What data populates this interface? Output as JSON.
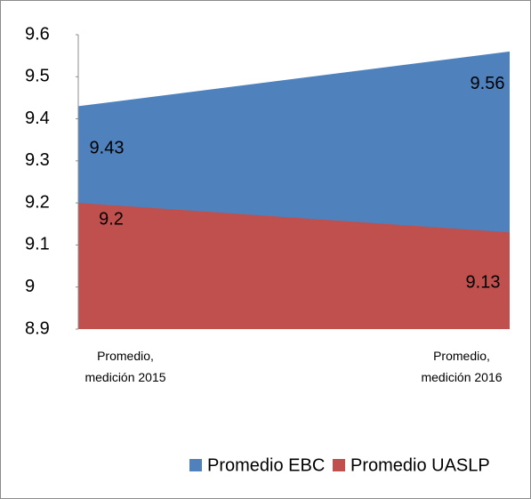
{
  "chart_data": {
    "type": "area",
    "categories": [
      "Promedio, medición 2015",
      "Promedio, medición 2016"
    ],
    "series": [
      {
        "name": "Promedio EBC",
        "color": "#4f81bd",
        "values": [
          9.43,
          9.56
        ]
      },
      {
        "name": "Promedio UASLP",
        "color": "#c0504d",
        "values": [
          9.2,
          9.13
        ]
      }
    ],
    "ylim": [
      8.9,
      9.6
    ],
    "yticks": [
      8.9,
      9,
      9.1,
      9.2,
      9.3,
      9.4,
      9.5,
      9.6
    ],
    "grid": false,
    "legend": "bottom"
  }
}
